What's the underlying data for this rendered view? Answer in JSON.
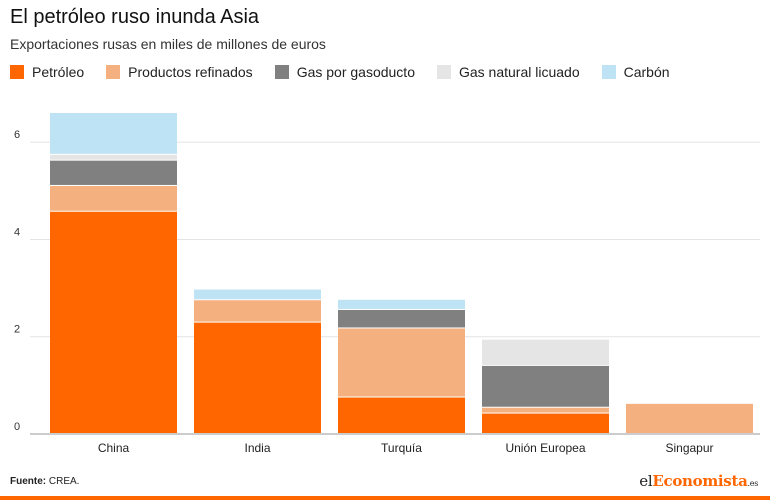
{
  "header": {
    "title": "El petróleo ruso inunda Asia",
    "subtitle": "Exportaciones rusas en miles de millones de euros"
  },
  "footer": {
    "source_label": "Fuente:",
    "source_value": "CREA.",
    "brand_prefix": "el",
    "brand_accent": "Economista",
    "brand_suffix": ".es"
  },
  "chart_data": {
    "type": "bar",
    "stacked": true,
    "categories": [
      "China",
      "India",
      "Turquía",
      "Unión Europea",
      "Singapur"
    ],
    "series": [
      {
        "name": "Petróleo",
        "color": "#ff6600",
        "values": [
          4.57,
          2.29,
          0.75,
          0.42,
          0
        ]
      },
      {
        "name": "Productos refinados",
        "color": "#f5b07f",
        "values": [
          0.53,
          0.46,
          1.42,
          0.12,
          0.62
        ]
      },
      {
        "name": "Gas por gasoducto",
        "color": "#808080",
        "values": [
          0.52,
          0,
          0.38,
          0.86,
          0
        ]
      },
      {
        "name": "Gas natural licuado",
        "color": "#e5e5e5",
        "values": [
          0.12,
          0,
          0,
          0.54,
          0
        ]
      },
      {
        "name": "Carbón",
        "color": "#bde3f5",
        "values": [
          0.86,
          0.22,
          0.21,
          0,
          0
        ]
      }
    ],
    "y_ticks": [
      0,
      2,
      4,
      6
    ],
    "ylim": [
      0,
      6.6
    ],
    "grid": true,
    "legend_position": "top-left"
  }
}
